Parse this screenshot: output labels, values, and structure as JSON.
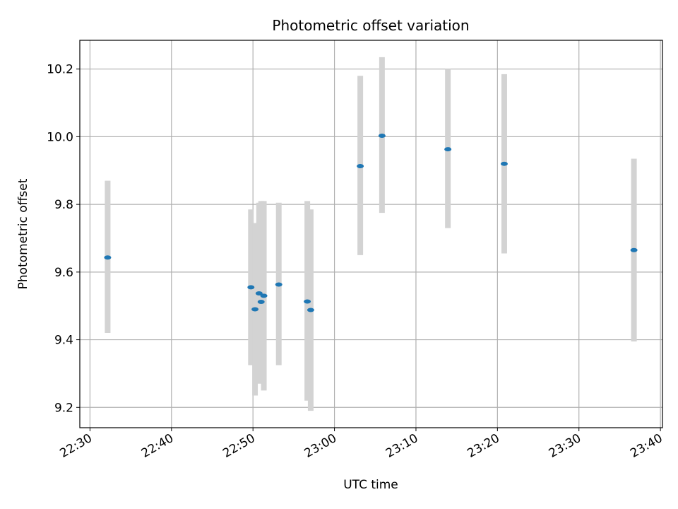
{
  "chart_data": {
    "type": "scatter",
    "title": "Photometric offset variation",
    "xlabel": "UTC time",
    "ylabel": "Photometric offset",
    "x_ticks": [
      "22:30",
      "22:40",
      "22:50",
      "23:00",
      "23:10",
      "23:20",
      "23:30",
      "23:40"
    ],
    "y_ticks": [
      "9.2",
      "9.4",
      "9.6",
      "9.8",
      "10.0",
      "10.2"
    ],
    "xlim": [
      "22:28:45",
      "23:40:15"
    ],
    "ylim": [
      9.14,
      10.285
    ],
    "grid": true,
    "colors": {
      "marker": "#1f77b4",
      "errorbar": "#d3d3d3",
      "grid": "#b0b0b0"
    },
    "points": [
      {
        "x": "22:32:10",
        "y": 9.643,
        "err_low": 9.42,
        "err_high": 9.87
      },
      {
        "x": "22:49:45",
        "y": 9.555,
        "err_low": 9.325,
        "err_high": 9.785
      },
      {
        "x": "22:50:15",
        "y": 9.49,
        "err_low": 9.235,
        "err_high": 9.745
      },
      {
        "x": "22:50:45",
        "y": 9.537,
        "err_low": 9.27,
        "err_high": 9.805
      },
      {
        "x": "22:51:00",
        "y": 9.512,
        "err_low": 9.28,
        "err_high": 9.81
      },
      {
        "x": "22:51:20",
        "y": 9.53,
        "err_low": 9.25,
        "err_high": 9.81
      },
      {
        "x": "22:53:10",
        "y": 9.563,
        "err_low": 9.325,
        "err_high": 9.805
      },
      {
        "x": "22:56:40",
        "y": 9.513,
        "err_low": 9.22,
        "err_high": 9.81
      },
      {
        "x": "22:57:05",
        "y": 9.488,
        "err_low": 9.19,
        "err_high": 9.785
      },
      {
        "x": "23:03:10",
        "y": 9.913,
        "err_low": 9.65,
        "err_high": 10.18
      },
      {
        "x": "23:05:50",
        "y": 10.003,
        "err_low": 9.775,
        "err_high": 10.235
      },
      {
        "x": "23:13:55",
        "y": 9.963,
        "err_low": 9.73,
        "err_high": 10.2
      },
      {
        "x": "23:20:50",
        "y": 9.92,
        "err_low": 9.655,
        "err_high": 10.185
      },
      {
        "x": "23:36:45",
        "y": 9.665,
        "err_low": 9.395,
        "err_high": 9.935
      }
    ]
  }
}
